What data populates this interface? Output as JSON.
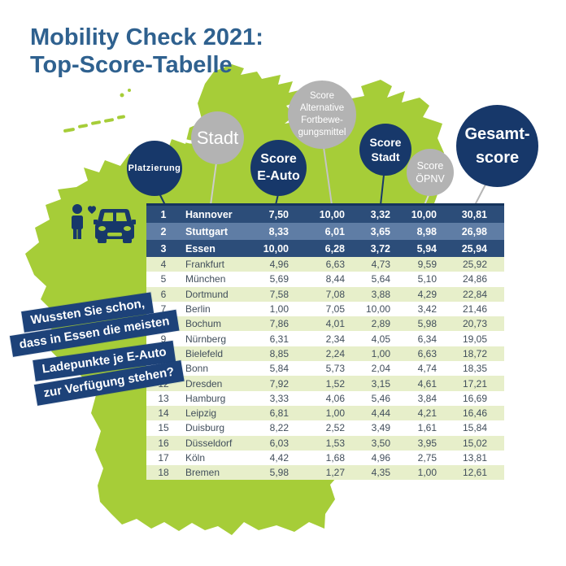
{
  "title": {
    "line1": "Mobility Check 2021:",
    "line2": "Top-Score-Tabelle"
  },
  "bubbles": [
    {
      "id": "platzierung",
      "label": "Platzierung",
      "color": "navy"
    },
    {
      "id": "stadt",
      "label": "Stadt",
      "color": "gray"
    },
    {
      "id": "score-e-auto",
      "label": "Score\nE-Auto",
      "color": "navy"
    },
    {
      "id": "score-alt",
      "label": "Score\nAlternative\nFortbewe-\ngungsmittel",
      "color": "gray"
    },
    {
      "id": "score-stadt",
      "label": "Score\nStadt",
      "color": "navy"
    },
    {
      "id": "score-oepnv",
      "label": "Score\nÖPNV",
      "color": "gray"
    },
    {
      "id": "gesamtscore",
      "label": "Gesamt-\nscore",
      "color": "navy"
    }
  ],
  "callout": {
    "lines": [
      "Wussten Sie schon,",
      "dass in Essen die meisten",
      "Ladepunkte je E-Auto",
      "zur Verfügung stehen?"
    ]
  },
  "icon": "person-with-heart-and-car",
  "colors": {
    "map_green": "#a6cd38",
    "row_light_green": "#e7efca",
    "navy_dark": "#17386a",
    "row_navy": "#2c4d79",
    "row_slate": "#5f7da5",
    "banner_navy": "#1d4279",
    "bubble_gray": "#b3b3b3",
    "title_blue": "#2f618f",
    "table_text": "#414e5b"
  },
  "chart_data": {
    "type": "table",
    "title": "Mobility Check 2021: Top-Score-Tabelle",
    "columns": [
      "Platzierung",
      "Stadt",
      "Score E-Auto",
      "Score Alternative Fortbewegungsmittel",
      "Score Stadt",
      "Score ÖPNV",
      "Gesamtscore"
    ],
    "rows": [
      [
        "1",
        "Hannover",
        "7,50",
        "10,00",
        "3,32",
        "10,00",
        "30,81"
      ],
      [
        "2",
        "Stuttgart",
        "8,33",
        "6,01",
        "3,65",
        "8,98",
        "26,98"
      ],
      [
        "3",
        "Essen",
        "10,00",
        "6,28",
        "3,72",
        "5,94",
        "25,94"
      ],
      [
        "4",
        "Frankfurt",
        "4,96",
        "6,63",
        "4,73",
        "9,59",
        "25,92"
      ],
      [
        "5",
        "München",
        "5,69",
        "8,44",
        "5,64",
        "5,10",
        "24,86"
      ],
      [
        "6",
        "Dortmund",
        "7,58",
        "7,08",
        "3,88",
        "4,29",
        "22,84"
      ],
      [
        "7",
        "Berlin",
        "1,00",
        "7,05",
        "10,00",
        "3,42",
        "21,46"
      ],
      [
        "8",
        "Bochum",
        "7,86",
        "4,01",
        "2,89",
        "5,98",
        "20,73"
      ],
      [
        "9",
        "Nürnberg",
        "6,31",
        "2,34",
        "4,05",
        "6,34",
        "19,05"
      ],
      [
        "10",
        "Bielefeld",
        "8,85",
        "2,24",
        "1,00",
        "6,63",
        "18,72"
      ],
      [
        "11",
        "Bonn",
        "5,84",
        "5,73",
        "2,04",
        "4,74",
        "18,35"
      ],
      [
        "12",
        "Dresden",
        "7,92",
        "1,52",
        "3,15",
        "4,61",
        "17,21"
      ],
      [
        "13",
        "Hamburg",
        "3,33",
        "4,06",
        "5,46",
        "3,84",
        "16,69"
      ],
      [
        "14",
        "Leipzig",
        "6,81",
        "1,00",
        "4,44",
        "4,21",
        "16,46"
      ],
      [
        "15",
        "Duisburg",
        "8,22",
        "2,52",
        "3,49",
        "1,61",
        "15,84"
      ],
      [
        "16",
        "Düsseldorf",
        "6,03",
        "1,53",
        "3,50",
        "3,95",
        "15,02"
      ],
      [
        "17",
        "Köln",
        "4,42",
        "1,68",
        "4,96",
        "2,75",
        "13,81"
      ],
      [
        "18",
        "Bremen",
        "5,98",
        "1,27",
        "4,35",
        "1,00",
        "12,61"
      ]
    ]
  }
}
